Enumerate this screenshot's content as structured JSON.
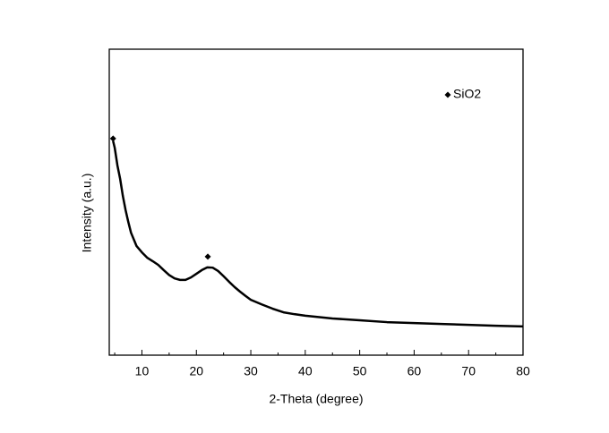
{
  "chart_data": {
    "type": "line",
    "xlabel": "2-Theta (degree)",
    "ylabel": "Intensity (a.u.)",
    "xlim": [
      4,
      80
    ],
    "ylim": [
      0,
      100
    ],
    "xticks": [
      10,
      20,
      30,
      40,
      50,
      60,
      70,
      80
    ],
    "xminorticks": [
      5,
      15,
      25,
      35,
      45,
      55,
      65,
      75
    ],
    "series": [
      {
        "color": "#000000",
        "x": [
          4.7,
          5,
          5.5,
          6,
          6.5,
          7,
          7.5,
          8,
          9,
          10,
          11,
          12,
          13,
          14,
          15,
          16,
          17,
          18,
          19,
          20,
          21,
          22,
          23,
          24,
          25,
          26,
          27,
          28,
          29,
          30,
          32,
          34,
          36,
          38,
          40,
          45,
          50,
          55,
          60,
          65,
          70,
          75,
          80
        ],
        "values": [
          70,
          67.8,
          62,
          57.6,
          52,
          47.4,
          43.5,
          40,
          35.7,
          33.6,
          31.8,
          30.7,
          29.5,
          27.8,
          26.2,
          25.1,
          24.6,
          24.6,
          25.4,
          26.6,
          27.8,
          28.7,
          28.6,
          27.5,
          25.8,
          24,
          22.3,
          20.8,
          19.4,
          18.1,
          16.6,
          15.2,
          14,
          13.4,
          12.9,
          12,
          11.4,
          10.8,
          10.5,
          10.2,
          9.9,
          9.6,
          9.4
        ]
      }
    ],
    "markers": {
      "name": "SiO2",
      "color": "#000000",
      "x": [
        4.7,
        22.1
      ],
      "values": [
        70.8,
        32.2
      ]
    }
  }
}
